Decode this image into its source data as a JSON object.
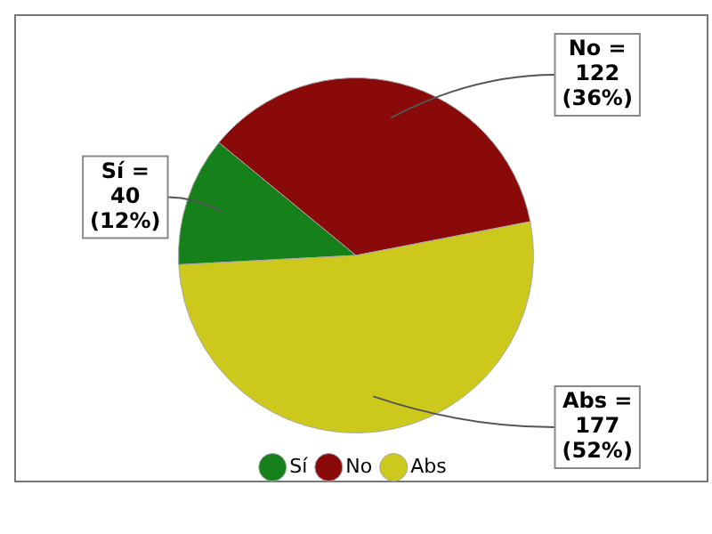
{
  "chart_data": {
    "type": "pie",
    "categories": [
      "Sí",
      "No",
      "Abs"
    ],
    "values": [
      40,
      122,
      177
    ],
    "colors": [
      "#16801a",
      "#8a0a0a",
      "#cdc81c"
    ],
    "value_labels": [
      "Sí =\n40\n(12%)",
      "No =\n122\n(36%)",
      "Abs =\n177\n(52%)"
    ],
    "legend": "bottom"
  }
}
